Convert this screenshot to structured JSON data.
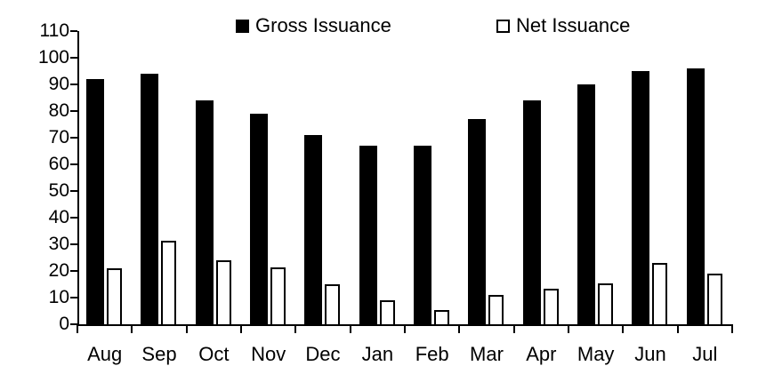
{
  "chart_data": {
    "type": "bar",
    "categories": [
      "Aug",
      "Sep",
      "Oct",
      "Nov",
      "Dec",
      "Jan",
      "Feb",
      "Mar",
      "Apr",
      "May",
      "Jun",
      "Jul"
    ],
    "series": [
      {
        "name": "Gross Issuance",
        "values": [
          92,
          94,
          84,
          79,
          71,
          67,
          67,
          77,
          84,
          90,
          95,
          96
        ],
        "fill": "#000000",
        "stroke": "#000000"
      },
      {
        "name": "Net Issuance",
        "values": [
          21,
          31.5,
          24,
          21.5,
          15,
          9,
          5.5,
          11,
          13.5,
          15.5,
          23,
          19
        ],
        "fill": "#ffffff",
        "stroke": "#000000"
      }
    ],
    "title": "",
    "xlabel": "",
    "ylabel": "",
    "ylim": [
      0,
      110
    ],
    "ytick_step": 10,
    "grid": false,
    "legend_position": "top",
    "axis_color": "#000000",
    "text_color": "#000000"
  }
}
